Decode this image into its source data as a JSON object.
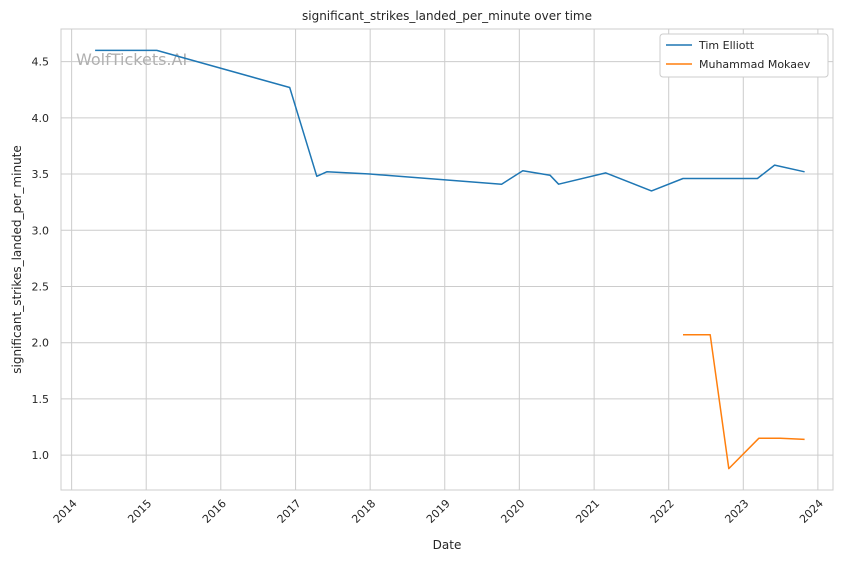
{
  "chart_data": {
    "type": "line",
    "title": "significant_strikes_landed_per_minute over time",
    "xlabel": "Date",
    "ylabel": "significant_strikes_landed_per_minute",
    "watermark": "WolfTickets.AI",
    "x_ticks": [
      "2014",
      "2015",
      "2016",
      "2017",
      "2018",
      "2019",
      "2020",
      "2021",
      "2022",
      "2023",
      "2024"
    ],
    "y_ticks": [
      "1.0",
      "1.5",
      "2.0",
      "2.5",
      "3.0",
      "3.5",
      "4.0",
      "4.5"
    ],
    "xlim": [
      "2013-11-10",
      "2024-03-15"
    ],
    "ylim": [
      0.69,
      4.79
    ],
    "grid": true,
    "legend_position": "top-right",
    "series": [
      {
        "name": "Tim Elliott",
        "color": "#1f77b4",
        "points": [
          {
            "x": "2014-04-26",
            "y": 4.6
          },
          {
            "x": "2015-02-22",
            "y": 4.6
          },
          {
            "x": "2016-12-03",
            "y": 4.27
          },
          {
            "x": "2017-04-15",
            "y": 3.48
          },
          {
            "x": "2017-06-03",
            "y": 3.52
          },
          {
            "x": "2017-12-30",
            "y": 3.5
          },
          {
            "x": "2019-10-06",
            "y": 3.41
          },
          {
            "x": "2020-01-18",
            "y": 3.53
          },
          {
            "x": "2020-05-30",
            "y": 3.49
          },
          {
            "x": "2020-07-11",
            "y": 3.41
          },
          {
            "x": "2021-02-27",
            "y": 3.51
          },
          {
            "x": "2021-10-09",
            "y": 3.35
          },
          {
            "x": "2022-03-12",
            "y": 3.46
          },
          {
            "x": "2023-03-11",
            "y": 3.46
          },
          {
            "x": "2023-06-03",
            "y": 3.58
          },
          {
            "x": "2023-10-28",
            "y": 3.52
          }
        ]
      },
      {
        "name": "Muhammad Mokaev",
        "color": "#ff7f0e",
        "points": [
          {
            "x": "2022-03-12",
            "y": 2.07
          },
          {
            "x": "2022-07-23",
            "y": 2.07
          },
          {
            "x": "2022-10-22",
            "y": 0.88
          },
          {
            "x": "2023-03-18",
            "y": 1.15
          },
          {
            "x": "2023-07-01",
            "y": 1.15
          },
          {
            "x": "2023-10-28",
            "y": 1.14
          }
        ]
      }
    ]
  }
}
